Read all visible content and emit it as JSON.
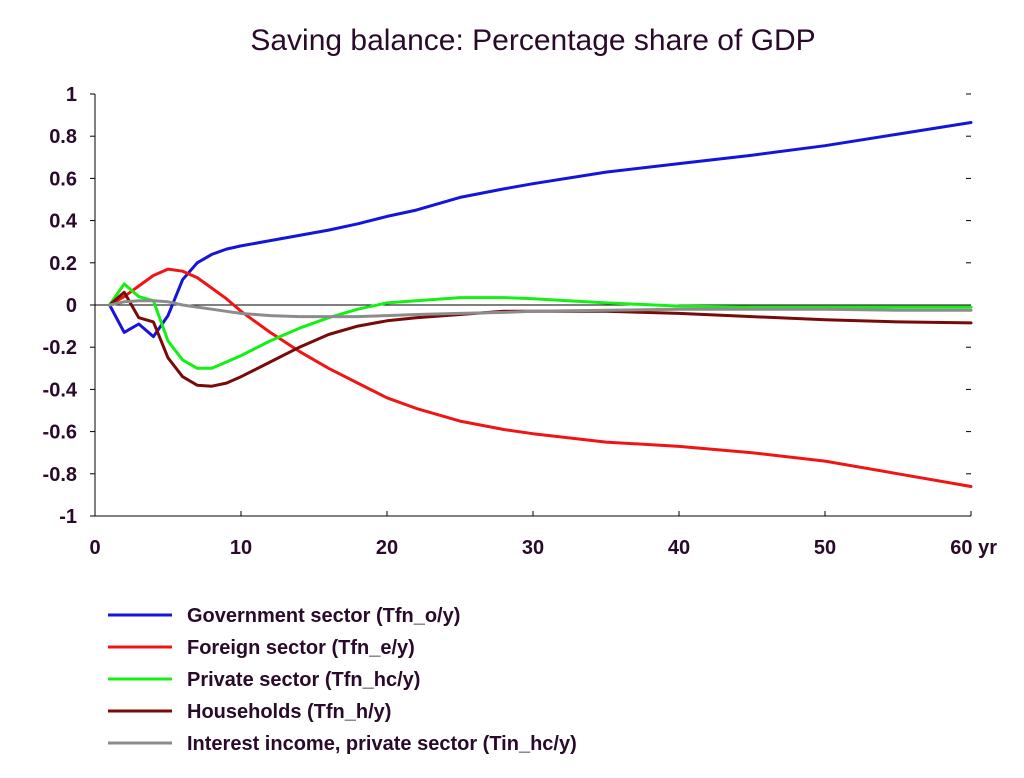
{
  "chart_data": {
    "type": "line",
    "title": "Saving balance: Percentage share of GDP",
    "xlabel": "",
    "ylabel": "",
    "xlim": [
      0,
      60
    ],
    "ylim": [
      -1,
      1
    ],
    "x_ticks": [
      0,
      10,
      20,
      30,
      40,
      50,
      60
    ],
    "x_tick_labels": [
      "0",
      "10",
      "20",
      "30",
      "40",
      "50",
      "60 yr"
    ],
    "y_ticks": [
      1,
      0.8,
      0.6,
      0.4,
      0.2,
      0,
      -0.2,
      -0.4,
      -0.6,
      -0.8,
      -1
    ],
    "y_tick_labels": [
      "1",
      "0.8",
      "0.6",
      "0.4",
      "0.2",
      "0",
      "-0.2",
      "-0.4",
      "-0.6",
      "-0.8",
      "-1"
    ],
    "grid": false,
    "zero_line": true,
    "legend_position": "bottom-left",
    "series": [
      {
        "name": "Government sector (Tfn_o/y)",
        "color": "#1414dc",
        "points": [
          [
            1,
            0
          ],
          [
            2,
            -0.13
          ],
          [
            3,
            -0.09
          ],
          [
            4,
            -0.15
          ],
          [
            5,
            -0.05
          ],
          [
            6,
            0.12
          ],
          [
            7,
            0.2
          ],
          [
            8,
            0.24
          ],
          [
            9,
            0.265
          ],
          [
            10,
            0.28
          ],
          [
            12,
            0.305
          ],
          [
            14,
            0.33
          ],
          [
            16,
            0.355
          ],
          [
            18,
            0.385
          ],
          [
            20,
            0.42
          ],
          [
            22,
            0.45
          ],
          [
            25,
            0.51
          ],
          [
            28,
            0.55
          ],
          [
            30,
            0.575
          ],
          [
            35,
            0.63
          ],
          [
            40,
            0.67
          ],
          [
            45,
            0.71
          ],
          [
            50,
            0.755
          ],
          [
            55,
            0.81
          ],
          [
            60,
            0.865
          ]
        ]
      },
      {
        "name": "Foreign sector (Tfn_e/y)",
        "color": "#f01414",
        "points": [
          [
            1,
            0
          ],
          [
            2,
            0.04
          ],
          [
            3,
            0.09
          ],
          [
            4,
            0.14
          ],
          [
            5,
            0.17
          ],
          [
            6,
            0.16
          ],
          [
            7,
            0.13
          ],
          [
            8,
            0.08
          ],
          [
            9,
            0.03
          ],
          [
            10,
            -0.03
          ],
          [
            12,
            -0.13
          ],
          [
            14,
            -0.22
          ],
          [
            16,
            -0.3
          ],
          [
            18,
            -0.37
          ],
          [
            20,
            -0.44
          ],
          [
            22,
            -0.49
          ],
          [
            25,
            -0.55
          ],
          [
            28,
            -0.59
          ],
          [
            30,
            -0.61
          ],
          [
            35,
            -0.65
          ],
          [
            40,
            -0.67
          ],
          [
            45,
            -0.7
          ],
          [
            50,
            -0.74
          ],
          [
            55,
            -0.8
          ],
          [
            60,
            -0.86
          ]
        ]
      },
      {
        "name": "Private sector (Tfn_hc/y)",
        "color": "#14f014",
        "points": [
          [
            1,
            0
          ],
          [
            2,
            0.1
          ],
          [
            3,
            0.04
          ],
          [
            4,
            0.02
          ],
          [
            5,
            -0.17
          ],
          [
            6,
            -0.26
          ],
          [
            7,
            -0.3
          ],
          [
            8,
            -0.3
          ],
          [
            9,
            -0.27
          ],
          [
            10,
            -0.24
          ],
          [
            12,
            -0.17
          ],
          [
            14,
            -0.11
          ],
          [
            16,
            -0.06
          ],
          [
            18,
            -0.02
          ],
          [
            20,
            0.01
          ],
          [
            22,
            0.02
          ],
          [
            25,
            0.035
          ],
          [
            28,
            0.035
          ],
          [
            30,
            0.03
          ],
          [
            35,
            0.01
          ],
          [
            40,
            -0.005
          ],
          [
            45,
            -0.01
          ],
          [
            50,
            -0.01
          ],
          [
            55,
            -0.01
          ],
          [
            60,
            -0.01
          ]
        ]
      },
      {
        "name": "Households (Tfn_h/y)",
        "color": "#780a0a",
        "points": [
          [
            1,
            0
          ],
          [
            2,
            0.06
          ],
          [
            3,
            -0.06
          ],
          [
            4,
            -0.08
          ],
          [
            5,
            -0.25
          ],
          [
            6,
            -0.34
          ],
          [
            7,
            -0.38
          ],
          [
            8,
            -0.385
          ],
          [
            9,
            -0.37
          ],
          [
            10,
            -0.34
          ],
          [
            12,
            -0.27
          ],
          [
            14,
            -0.2
          ],
          [
            16,
            -0.14
          ],
          [
            18,
            -0.1
          ],
          [
            20,
            -0.075
          ],
          [
            22,
            -0.06
          ],
          [
            25,
            -0.045
          ],
          [
            28,
            -0.03
          ],
          [
            30,
            -0.03
          ],
          [
            35,
            -0.03
          ],
          [
            40,
            -0.04
          ],
          [
            45,
            -0.055
          ],
          [
            50,
            -0.07
          ],
          [
            55,
            -0.08
          ],
          [
            60,
            -0.085
          ]
        ]
      },
      {
        "name": "Interest income, private sector (Tin_hc/y)",
        "color": "#8c8c8c",
        "points": [
          [
            1,
            0
          ],
          [
            2,
            0.015
          ],
          [
            3,
            0.02
          ],
          [
            4,
            0.02
          ],
          [
            5,
            0.015
          ],
          [
            6,
            0
          ],
          [
            7,
            -0.01
          ],
          [
            8,
            -0.02
          ],
          [
            9,
            -0.03
          ],
          [
            10,
            -0.04
          ],
          [
            12,
            -0.05
          ],
          [
            14,
            -0.055
          ],
          [
            16,
            -0.055
          ],
          [
            18,
            -0.055
          ],
          [
            20,
            -0.05
          ],
          [
            22,
            -0.045
          ],
          [
            25,
            -0.04
          ],
          [
            28,
            -0.035
          ],
          [
            30,
            -0.03
          ],
          [
            35,
            -0.025
          ],
          [
            40,
            -0.02
          ],
          [
            45,
            -0.02
          ],
          [
            50,
            -0.02
          ],
          [
            55,
            -0.025
          ],
          [
            60,
            -0.025
          ]
        ]
      }
    ]
  }
}
